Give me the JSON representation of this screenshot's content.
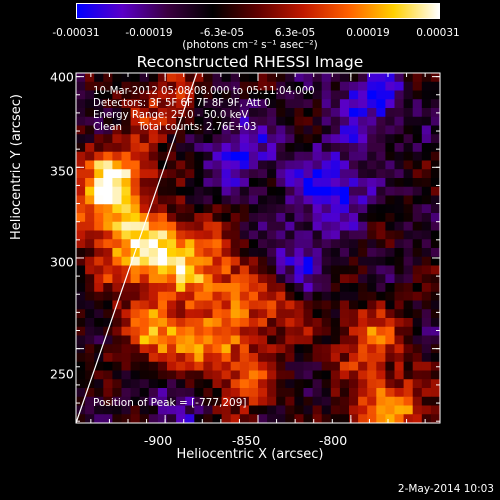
{
  "colorbar": {
    "ticks": [
      "-0.00031",
      "-0.00019",
      "-6.3e-05",
      "6.3e-05",
      "0.00019",
      "0.00031"
    ],
    "unit_label": "(photons cm⁻² s⁻¹ asec⁻²)",
    "range": [
      -0.00031,
      0.00031
    ],
    "colors": [
      "#0000ff",
      "#5a00c8",
      "#3a0040",
      "#000000",
      "#600000",
      "#c01800",
      "#ff6000",
      "#ffd000",
      "#ffffff"
    ]
  },
  "info_lines": [
    "10-Mar-2012 05:08:08.000 to 05:11:04.000",
    "Detectors: 3F 5F 6F 7F 8F 9F, Att 0",
    "Energy Range: 25.0 - 50.0 keV",
    "Clean     Total counts: 2.76E+03"
  ],
  "peak_text": "Position of Peak = [-777,209]",
  "footer_text": "2-May-2014 10:03",
  "chart_data": {
    "type": "heatmap",
    "title": "Reconstructed RHESSI Image",
    "xlabel": "Heliocentric X (arcsec)",
    "ylabel": "Heliocentric Y (arcsec)",
    "xlim": [
      -948,
      -752
    ],
    "ylim": [
      209,
      402
    ],
    "x_ticks": [
      "-900",
      "-850",
      "-800"
    ],
    "x_tick_values": [
      -900,
      -850,
      -800
    ],
    "y_ticks": [
      "250",
      "300",
      "350",
      "400"
    ],
    "y_tick_values": [
      250,
      300,
      350,
      400
    ],
    "grid_size": 40,
    "limb_line": [
      [
        -948,
        209
      ],
      [
        -883,
        402
      ]
    ],
    "color_scale": "blue-purple-black-red-yellow-white",
    "hot_regions": [
      {
        "x": -925,
        "y": 345,
        "value": 0.00031
      },
      {
        "x": -915,
        "y": 300,
        "value": 0.00027
      },
      {
        "x": -895,
        "y": 305,
        "value": 0.00024
      },
      {
        "x": -870,
        "y": 290,
        "value": 0.00022
      },
      {
        "x": -905,
        "y": 260,
        "value": 0.00024
      },
      {
        "x": -880,
        "y": 250,
        "value": 0.00022
      },
      {
        "x": -845,
        "y": 270,
        "value": 0.0002
      },
      {
        "x": -790,
        "y": 255,
        "value": 0.00022
      },
      {
        "x": -780,
        "y": 215,
        "value": 0.00031
      },
      {
        "x": -900,
        "y": 385,
        "value": 0.00016
      },
      {
        "x": -935,
        "y": 325,
        "value": 0.0002
      },
      {
        "x": -860,
        "y": 230,
        "value": 0.00018
      }
    ],
    "cold_regions": [
      {
        "x": -860,
        "y": 360,
        "value": -0.00019
      },
      {
        "x": -810,
        "y": 340,
        "value": -0.00022
      },
      {
        "x": -790,
        "y": 385,
        "value": -0.00019
      },
      {
        "x": -830,
        "y": 300,
        "value": -0.00016
      },
      {
        "x": -890,
        "y": 225,
        "value": -0.00014
      }
    ]
  }
}
